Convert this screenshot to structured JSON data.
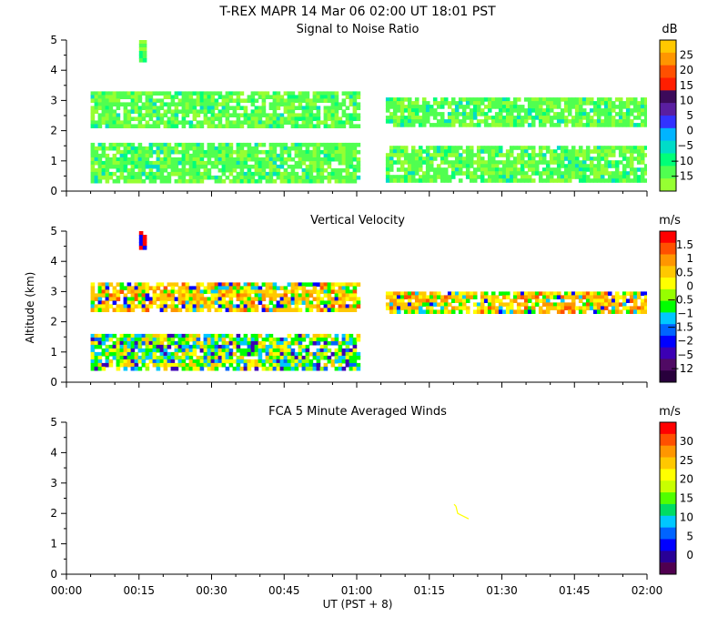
{
  "header": {
    "title": "T-REX   MAPR 14 Mar 06   02:00 UT   18:01   PST"
  },
  "xaxis": {
    "label": "UT  (PST + 8)",
    "range": [
      0,
      120
    ],
    "ticks": [
      0,
      15,
      30,
      45,
      60,
      75,
      90,
      105,
      120
    ],
    "tick_labels": [
      "00:00",
      "00:15",
      "00:30",
      "00:45",
      "01:00",
      "01:15",
      "01:30",
      "01:45",
      "02:00"
    ]
  },
  "yaxis_label": "Altitude (km)",
  "chart_data": [
    {
      "type": "heatmap",
      "title": "Signal to Noise Ratio",
      "ylabel": "Altitude (km)",
      "ylim": [
        0,
        5
      ],
      "yticks": [
        0,
        1,
        2,
        3,
        4,
        5
      ],
      "colorbar": {
        "unit": "dB",
        "labels": [
          "25",
          "20",
          "15",
          "10",
          "5",
          "0",
          "−5",
          "−10",
          "−15"
        ],
        "colors": [
          "#ffc800",
          "#ff9600",
          "#ff5000",
          "#ff1e00",
          "#3c0a5a",
          "#5a1ea0",
          "#3232ff",
          "#00b4ff",
          "#00dcc8",
          "#00ff78",
          "#50ff50",
          "#96ff32"
        ]
      },
      "layers": [
        {
          "label": "upper cloud band",
          "x": [
            5,
            60
          ],
          "alt": [
            2.2,
            3.3
          ],
          "value_db": -10
        },
        {
          "label": "upper cloud band",
          "x": [
            66,
            120
          ],
          "alt": [
            2.2,
            3.1
          ],
          "value_db": -10
        },
        {
          "label": "lower cloud band",
          "x": [
            5,
            60
          ],
          "alt": [
            0.3,
            1.6
          ],
          "value_db": -12
        },
        {
          "label": "lower cloud band",
          "x": [
            66,
            120
          ],
          "alt": [
            0.3,
            1.5
          ],
          "value_db": -13
        },
        {
          "label": "plume",
          "x": [
            15,
            16.5
          ],
          "alt": [
            4.3,
            5.0
          ],
          "value_db": -10
        }
      ],
      "gaps": [
        [
          60,
          66
        ]
      ]
    },
    {
      "type": "heatmap",
      "title": "Vertical Velocity",
      "ylabel": "Altitude (km)",
      "ylim": [
        0,
        5
      ],
      "yticks": [
        0,
        1,
        2,
        3,
        4,
        5
      ],
      "colorbar": {
        "unit": "m/s",
        "labels": [
          "1.5",
          "1",
          "0.5",
          "0",
          "−0.5",
          "−1",
          "−1.5",
          "−2",
          "−5",
          "−12"
        ],
        "colors": [
          "#ff0000",
          "#ff5000",
          "#ff9600",
          "#ffc800",
          "#ffff00",
          "#96ff00",
          "#00ff00",
          "#00c8ff",
          "#0064ff",
          "#0000ff",
          "#3c00b4",
          "#500a64",
          "#28003c"
        ]
      },
      "layers": [
        {
          "label": "upper layer",
          "x": [
            5,
            60
          ],
          "alt": [
            2.4,
            3.3
          ],
          "value_ms": 0.6
        },
        {
          "label": "upper layer",
          "x": [
            66,
            120
          ],
          "alt": [
            2.3,
            3.0
          ],
          "value_ms": 0.0
        },
        {
          "label": "lower layer",
          "x": [
            5,
            60
          ],
          "alt": [
            0.4,
            1.6
          ],
          "value_ms": -0.8
        },
        {
          "label": "plume",
          "x": [
            15,
            16.5
          ],
          "alt": [
            4.4,
            5.0
          ],
          "value_ms": 1.5
        }
      ],
      "gaps": [
        [
          60,
          66
        ]
      ]
    },
    {
      "type": "scatter",
      "title": "FCA 5 Minute Averaged Winds",
      "ylabel": "Altitude (km)",
      "ylim": [
        0,
        5
      ],
      "yticks": [
        0,
        1,
        2,
        3,
        4,
        5
      ],
      "colorbar": {
        "unit": "m/s",
        "labels": [
          "30",
          "25",
          "20",
          "15",
          "10",
          "5",
          "0"
        ],
        "colors": [
          "#ff0000",
          "#ff5000",
          "#ff9600",
          "#ffc800",
          "#ffff00",
          "#c8ff00",
          "#50ff00",
          "#00dc64",
          "#00c8ff",
          "#0064ff",
          "#0000ff",
          "#280096",
          "#500050"
        ]
      },
      "barbs": [
        {
          "time_min": 80.5,
          "alt_km": 2.0,
          "speed_ms": 20
        }
      ]
    }
  ]
}
